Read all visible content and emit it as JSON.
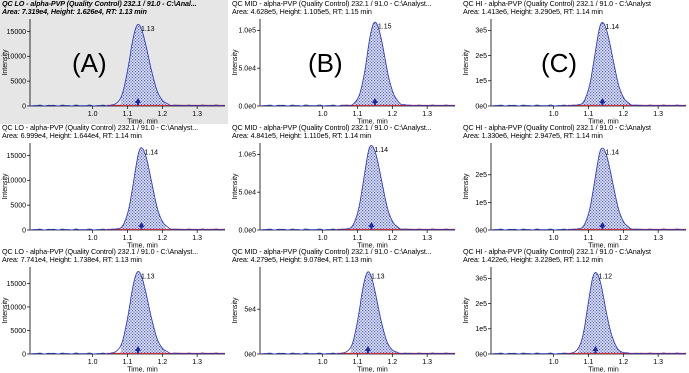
{
  "colors": {
    "curve": "#2433b8",
    "fill": "#4f5fc4",
    "baseline": "#c8202a",
    "marker": "#1c2aa0",
    "axis": "#000000",
    "selected_bg": "#e6e6e6"
  },
  "chart_data": [
    {
      "type": "area",
      "id": "lo1",
      "selected": true,
      "header_line1": "QC LO - alpha-PVP (Quality Control) 232.1 / 91.0 - C:\\Anal...",
      "header_line2": "Area: 7.319e4, Height: 1.626e4, RT: 1.13 min",
      "panel_letter": "(A)",
      "xlabel": "Time, min",
      "ylabel": "Intensity",
      "xlim": [
        0.82,
        1.38
      ],
      "ylim": [
        0,
        17500
      ],
      "xticks": [
        1.0,
        1.1,
        1.2,
        1.3
      ],
      "xtick_labels": [
        "1.0",
        "1.1",
        "1.2",
        "1.3"
      ],
      "yticks": [
        0,
        5000,
        10000,
        15000
      ],
      "ytick_labels": [
        "0",
        "5000",
        "10000",
        "15000"
      ],
      "peak": {
        "rt": 1.13,
        "label": "1.13",
        "height": 16260,
        "sigma_left": 0.023,
        "sigma_right": 0.03,
        "start": 1.08,
        "end": 1.21
      }
    },
    {
      "type": "area",
      "id": "mid1",
      "selected": false,
      "header_line1": "QC MID - alpha-PVP (Quality Control) 232.1 / 91.0 - C:\\Analyst...",
      "header_line2": "Area: 4.628e5, Height: 1.105e5, RT: 1.15 min",
      "panel_letter": "(B)",
      "xlabel": "Time, min",
      "ylabel": "Intensity",
      "xlim": [
        0.82,
        1.38
      ],
      "ylim": [
        0,
        115000
      ],
      "xticks": [
        1.0,
        1.1,
        1.2,
        1.3
      ],
      "xtick_labels": [
        "1.0",
        "1.1",
        "1.2",
        "1.3"
      ],
      "yticks": [
        0,
        50000,
        100000
      ],
      "ytick_labels": [
        "0.0e0",
        "5.0e4",
        "1.0e5"
      ],
      "peak": {
        "rt": 1.15,
        "label": "1.15",
        "height": 110500,
        "sigma_left": 0.022,
        "sigma_right": 0.027,
        "start": 1.09,
        "end": 1.22
      }
    },
    {
      "type": "area",
      "id": "hi1",
      "selected": false,
      "header_line1": "QC HI - alpha-PVP (Quality Control) 232.1 / 91.0 - C:\\Analyst",
      "header_line2": "Area: 1.413e6, Height: 3.290e5, RT: 1.14 min",
      "panel_letter": "(C)",
      "xlabel": "Time, min",
      "ylabel": "Intensity",
      "xlim": [
        0.82,
        1.38
      ],
      "ylim": [
        0,
        345000
      ],
      "xticks": [
        1.0,
        1.1,
        1.2,
        1.3
      ],
      "xtick_labels": [
        "1.0",
        "1.1",
        "1.2",
        "1.3"
      ],
      "yticks": [
        0,
        100000,
        200000,
        300000
      ],
      "ytick_labels": [
        "0e0",
        "1e5",
        "2e5",
        "3e5"
      ],
      "peak": {
        "rt": 1.14,
        "label": "1.14",
        "height": 329000,
        "sigma_left": 0.022,
        "sigma_right": 0.028,
        "start": 1.08,
        "end": 1.22
      }
    },
    {
      "type": "area",
      "id": "lo2",
      "selected": false,
      "header_line1": "QC LO - alpha-PVP (Quality Control) 232.1 / 91.0 - C:\\Analyst...",
      "header_line2": "Area: 6.999e4, Height: 1.644e4, RT: 1.14 min",
      "panel_letter": "",
      "xlabel": "Time, min",
      "ylabel": "Intensity",
      "xlim": [
        0.82,
        1.38
      ],
      "ylim": [
        0,
        17500
      ],
      "xticks": [
        1.0,
        1.1,
        1.2,
        1.3
      ],
      "xtick_labels": [
        "1.0",
        "1.1",
        "1.2",
        "1.3"
      ],
      "yticks": [
        0,
        5000,
        10000,
        15000
      ],
      "ytick_labels": [
        "0",
        "5000",
        "10000",
        "15000"
      ],
      "peak": {
        "rt": 1.14,
        "label": "1.14",
        "height": 16440,
        "sigma_left": 0.022,
        "sigma_right": 0.028,
        "start": 1.08,
        "end": 1.21
      }
    },
    {
      "type": "area",
      "id": "mid2",
      "selected": false,
      "header_line1": "QC MID - alpha-PVP (Quality Control) 232.1 / 91.0 - C:\\Analyst...",
      "header_line2": "Area: 4.841e5, Height: 1.110e5, RT: 1.14 min",
      "panel_letter": "",
      "xlabel": "Time, min",
      "ylabel": "Intensity",
      "xlim": [
        0.82,
        1.38
      ],
      "ylim": [
        0,
        115000
      ],
      "xticks": [
        1.0,
        1.1,
        1.2,
        1.3
      ],
      "xtick_labels": [
        "1.0",
        "1.1",
        "1.2",
        "1.3"
      ],
      "yticks": [
        0,
        50000,
        100000
      ],
      "ytick_labels": [
        "0.0e0",
        "5.0e4",
        "1.0e5"
      ],
      "peak": {
        "rt": 1.14,
        "label": "1.14",
        "height": 111000,
        "sigma_left": 0.022,
        "sigma_right": 0.028,
        "start": 1.08,
        "end": 1.22
      }
    },
    {
      "type": "area",
      "id": "hi2",
      "selected": false,
      "header_line1": "QC HI - alpha-PVP (Quality Control) 232.1 / 91.0 - C:\\Analyst",
      "header_line2": "Area: 1.330e6, Height: 2.947e5, RT: 1.14 min",
      "panel_letter": "",
      "xlabel": "Time, min",
      "ylabel": "Intensity",
      "xlim": [
        0.82,
        1.38
      ],
      "ylim": [
        0,
        315000
      ],
      "xticks": [
        1.0,
        1.1,
        1.2,
        1.3
      ],
      "xtick_labels": [
        "1.0",
        "1.1",
        "1.2",
        "1.3"
      ],
      "yticks": [
        0,
        100000,
        200000
      ],
      "ytick_labels": [
        "0e0",
        "1e5",
        "2e5"
      ],
      "peak": {
        "rt": 1.14,
        "label": "1.14",
        "height": 294700,
        "sigma_left": 0.022,
        "sigma_right": 0.028,
        "start": 1.08,
        "end": 1.22
      }
    },
    {
      "type": "area",
      "id": "lo3",
      "selected": false,
      "header_line1": "QC LO - alpha-PVP (Quality Control) 232.1 / 91.0 - C:\\Analyst...",
      "header_line2": "Area: 7.741e4, Height: 1.738e4, RT: 1.13 min",
      "panel_letter": "",
      "xlabel": "Time, min",
      "ylabel": "Intensity",
      "xlim": [
        0.82,
        1.38
      ],
      "ylim": [
        0,
        18500
      ],
      "xticks": [
        1.0,
        1.1,
        1.2,
        1.3
      ],
      "xtick_labels": [
        "1.0",
        "1.1",
        "1.2",
        "1.3"
      ],
      "yticks": [
        0,
        5000,
        10000,
        15000
      ],
      "ytick_labels": [
        "0",
        "5000",
        "10000",
        "15000"
      ],
      "peak": {
        "rt": 1.13,
        "label": "1.13",
        "height": 17380,
        "sigma_left": 0.023,
        "sigma_right": 0.03,
        "start": 1.08,
        "end": 1.21
      }
    },
    {
      "type": "area",
      "id": "mid3",
      "selected": false,
      "header_line1": "QC MID - alpha-PVP (Quality Control) 232.1 / 91.0 - C:\\Analyst...",
      "header_line2": "Area: 4.279e5, Height: 9.078e4, RT: 1.13 min",
      "panel_letter": "",
      "xlabel": "Time, min",
      "ylabel": "Intensity",
      "xlim": [
        0.82,
        1.38
      ],
      "ylim": [
        0,
        97000
      ],
      "xticks": [
        1.0,
        1.1,
        1.2,
        1.3
      ],
      "xtick_labels": [
        "1.0",
        "1.1",
        "1.2",
        "1.3"
      ],
      "yticks": [
        0,
        50000
      ],
      "ytick_labels": [
        "0e0",
        "5e4"
      ],
      "peak": {
        "rt": 1.13,
        "label": "1.13",
        "height": 90780,
        "sigma_left": 0.022,
        "sigma_right": 0.028,
        "start": 1.08,
        "end": 1.21
      }
    },
    {
      "type": "area",
      "id": "hi3",
      "selected": false,
      "header_line1": "QC HI - alpha-PVP (Quality Control) 232.1 / 91.0 - C:\\Analyst",
      "header_line2": "Area: 1.422e6, Height: 3.228e5, RT: 1.12 min",
      "panel_letter": "",
      "xlabel": "Time, min",
      "ylabel": "Intensity",
      "xlim": [
        0.82,
        1.38
      ],
      "ylim": [
        0,
        345000
      ],
      "xticks": [
        1.0,
        1.1,
        1.2,
        1.3
      ],
      "xtick_labels": [
        "1.0",
        "1.1",
        "1.2",
        "1.3"
      ],
      "yticks": [
        0,
        100000,
        200000,
        300000
      ],
      "ytick_labels": [
        "0e0",
        "1e5",
        "2e5",
        "3e5"
      ],
      "peak": {
        "rt": 1.12,
        "label": "1.12",
        "height": 322800,
        "sigma_left": 0.021,
        "sigma_right": 0.027,
        "start": 1.07,
        "end": 1.2
      }
    }
  ]
}
